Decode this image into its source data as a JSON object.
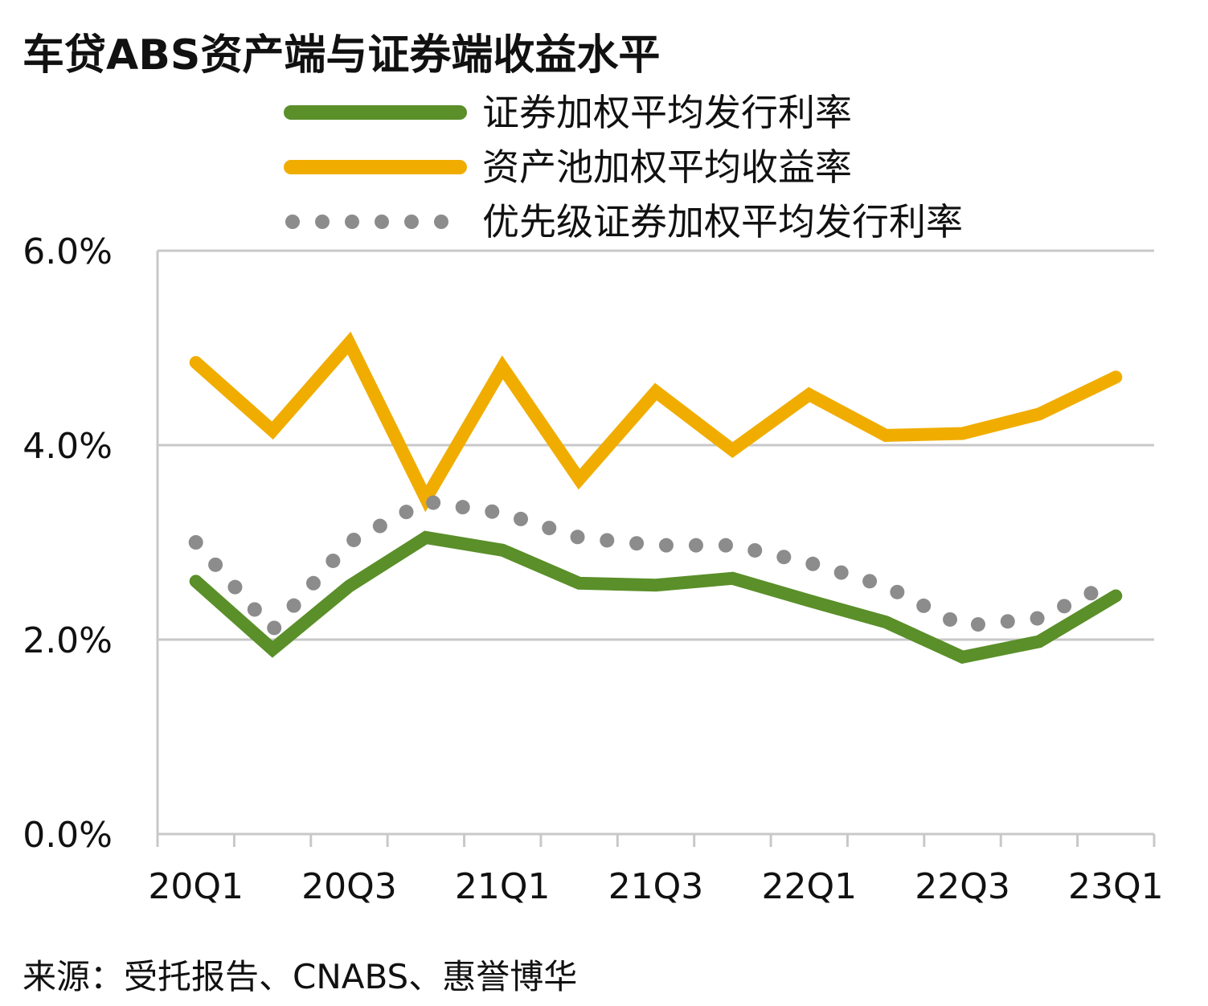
{
  "chart_data": {
    "type": "line",
    "title": "车贷ABS资产端与证券端收益水平",
    "source": "来源：受托报告、CNABS、惠誉博华",
    "x": [
      "20Q1",
      "20Q2",
      "20Q3",
      "20Q4",
      "21Q1",
      "21Q2",
      "21Q3",
      "21Q4",
      "22Q1",
      "22Q2",
      "22Q3",
      "22Q4",
      "23Q1"
    ],
    "x_tick_labels": [
      "20Q1",
      "20Q3",
      "21Q1",
      "21Q3",
      "22Q1",
      "22Q3",
      "23Q1"
    ],
    "y_tick_labels": [
      "0.0%",
      "2.0%",
      "4.0%",
      "6.0%"
    ],
    "ylim": [
      0,
      6
    ],
    "grid": true,
    "legend_position": "top",
    "series": [
      {
        "name": "证券加权平均发行利率",
        "color": "#5a8f29",
        "style": "solid",
        "values": [
          2.6,
          1.9,
          2.55,
          3.05,
          2.92,
          2.58,
          2.56,
          2.63,
          2.4,
          2.18,
          1.82,
          1.98,
          2.45
        ]
      },
      {
        "name": "资产池加权平均收益率",
        "color": "#f0ad00",
        "style": "solid",
        "values": [
          4.85,
          4.15,
          5.05,
          3.45,
          4.8,
          3.65,
          4.55,
          3.95,
          4.52,
          4.1,
          4.12,
          4.32,
          4.7
        ]
      },
      {
        "name": "优先级证券加权平均发行利率",
        "color": "#8c8c8c",
        "style": "dotted",
        "values": [
          3.0,
          2.1,
          3.0,
          3.42,
          3.3,
          3.05,
          2.97,
          2.97,
          2.79,
          2.55,
          2.14,
          2.22,
          2.6
        ]
      }
    ]
  }
}
